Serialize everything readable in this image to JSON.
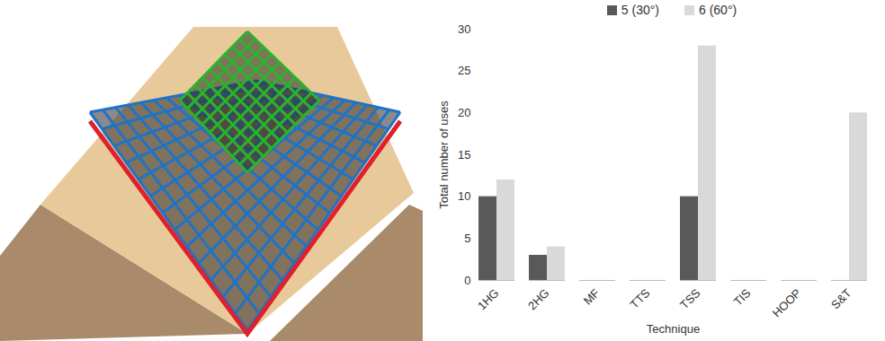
{
  "chart_data": {
    "type": "bar",
    "x_label": "Technique",
    "y_label": "Total number of uses",
    "categories": [
      "1HG",
      "2HG",
      "MF",
      "TTS",
      "TSS",
      "TIS",
      "HOOP",
      "S&T"
    ],
    "series": [
      {
        "name": "5 (30°)",
        "color": "#595959",
        "values": [
          10,
          3,
          0,
          0,
          10,
          0,
          0,
          0
        ]
      },
      {
        "name": "6 (60°)",
        "color": "#d9d9d9",
        "values": [
          12,
          4,
          0,
          0,
          28,
          0,
          0,
          20
        ]
      }
    ],
    "ylim": [
      0,
      30
    ],
    "yticks": [
      0,
      5,
      10,
      15,
      20,
      25,
      30
    ],
    "grid": false,
    "legend": "top"
  }
}
